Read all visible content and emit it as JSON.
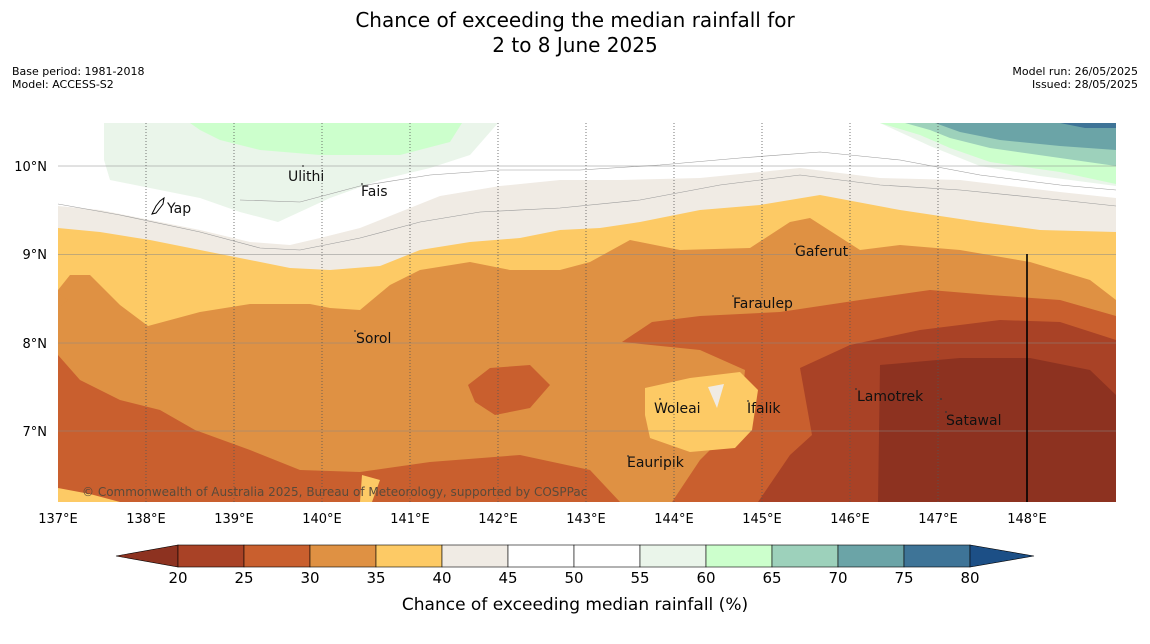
{
  "header": {
    "title_line1": "Chance of exceeding the median rainfall for",
    "title_line2": "2 to 8 June 2025",
    "base_period": "Base period: 1981-2018",
    "model": "Model: ACCESS-S2",
    "model_run": "Model run: 26/05/2025",
    "issued": "Issued: 28/05/2025"
  },
  "map": {
    "lon_ticks": [
      "137°E",
      "138°E",
      "139°E",
      "140°E",
      "141°E",
      "142°E",
      "143°E",
      "144°E",
      "145°E",
      "146°E",
      "147°E",
      "148°E"
    ],
    "lat_ticks": [
      "10°N",
      "9°N",
      "8°N",
      "7°N"
    ],
    "places": [
      {
        "name": "Ulithi"
      },
      {
        "name": "Fais"
      },
      {
        "name": "Yap"
      },
      {
        "name": "Gaferut"
      },
      {
        "name": "Faraulep"
      },
      {
        "name": "Sorol"
      },
      {
        "name": "Woleai"
      },
      {
        "name": "Ifalik"
      },
      {
        "name": "Lamotrek"
      },
      {
        "name": "Satawal"
      },
      {
        "name": "Eauripik"
      }
    ],
    "copyright": "© Commonwealth of Australia 2025, Bureau of Meteorology, supported by COSPPac"
  },
  "colorbar": {
    "ticks": [
      "20",
      "25",
      "30",
      "35",
      "40",
      "45",
      "50",
      "55",
      "60",
      "65",
      "70",
      "75",
      "80"
    ],
    "colors": [
      "#a94226",
      "#c95f2e",
      "#df9143",
      "#fdca65",
      "#f0ebe4",
      "#ffffff",
      "#ffffff",
      "#eaf5ea",
      "#ccffcc",
      "#9dd1bb",
      "#6ba4a7",
      "#3e7497"
    ],
    "under_color": "#8d3220",
    "over_color": "#1c4f86",
    "title": "Chance of exceeding median rainfall (%)"
  }
}
